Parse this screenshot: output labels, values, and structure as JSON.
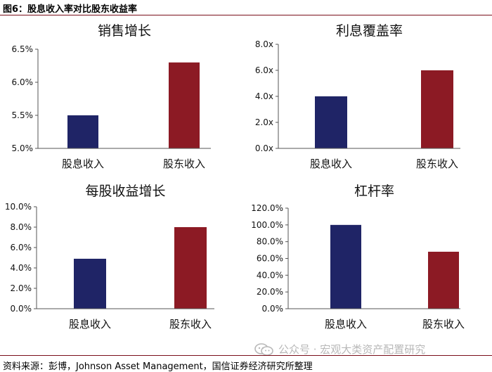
{
  "header": {
    "title": "图6：股息收入率对比股东收益率"
  },
  "footer": {
    "source": "资料来源：彭博，Johnson Asset Management，国信证券经济研究所整理"
  },
  "watermark": {
    "text": "公众号 · 宏观大类资产配置研究",
    "icon": "wechat-icon"
  },
  "colors": {
    "navy": "#1f2466",
    "crimson": "#8c1a24",
    "rule": "#7a0f1a"
  },
  "chart_data": [
    {
      "type": "bar",
      "title": "销售增长",
      "categories": [
        "股息收入",
        "股东收入"
      ],
      "values": [
        5.5,
        6.3
      ],
      "ylim": [
        5.0,
        6.5
      ],
      "yticks": [
        "5.0%",
        "5.5%",
        "6.0%",
        "6.5%"
      ],
      "unit": "%",
      "colors": [
        "#1f2466",
        "#8c1a24"
      ],
      "grid": false,
      "legend": "none"
    },
    {
      "type": "bar",
      "title": "利息覆盖率",
      "categories": [
        "股息收入",
        "股东收入"
      ],
      "values": [
        4.0,
        6.0
      ],
      "ylim": [
        0,
        8
      ],
      "yticks": [
        "0.0x",
        "2.0x",
        "4.0x",
        "6.0x",
        "8.0x"
      ],
      "unit": "x",
      "colors": [
        "#1f2466",
        "#8c1a24"
      ],
      "grid": false,
      "legend": "none"
    },
    {
      "type": "bar",
      "title": "每股收益增长",
      "categories": [
        "股息收入",
        "股东收入"
      ],
      "values": [
        4.9,
        8.0
      ],
      "ylim": [
        0,
        10
      ],
      "yticks": [
        "0.0%",
        "2.0%",
        "4.0%",
        "6.0%",
        "8.0%",
        "10.0%"
      ],
      "unit": "%",
      "colors": [
        "#1f2466",
        "#8c1a24"
      ],
      "grid": false,
      "legend": "none"
    },
    {
      "type": "bar",
      "title": "杠杆率",
      "categories": [
        "股息收入",
        "股东收入"
      ],
      "values": [
        100,
        68
      ],
      "ylim": [
        0,
        120
      ],
      "yticks": [
        "0.0%",
        "20.0%",
        "40.0%",
        "60.0%",
        "80.0%",
        "100.0%",
        "120.0%"
      ],
      "unit": "%",
      "colors": [
        "#1f2466",
        "#8c1a24"
      ],
      "grid": false,
      "legend": "none"
    }
  ]
}
